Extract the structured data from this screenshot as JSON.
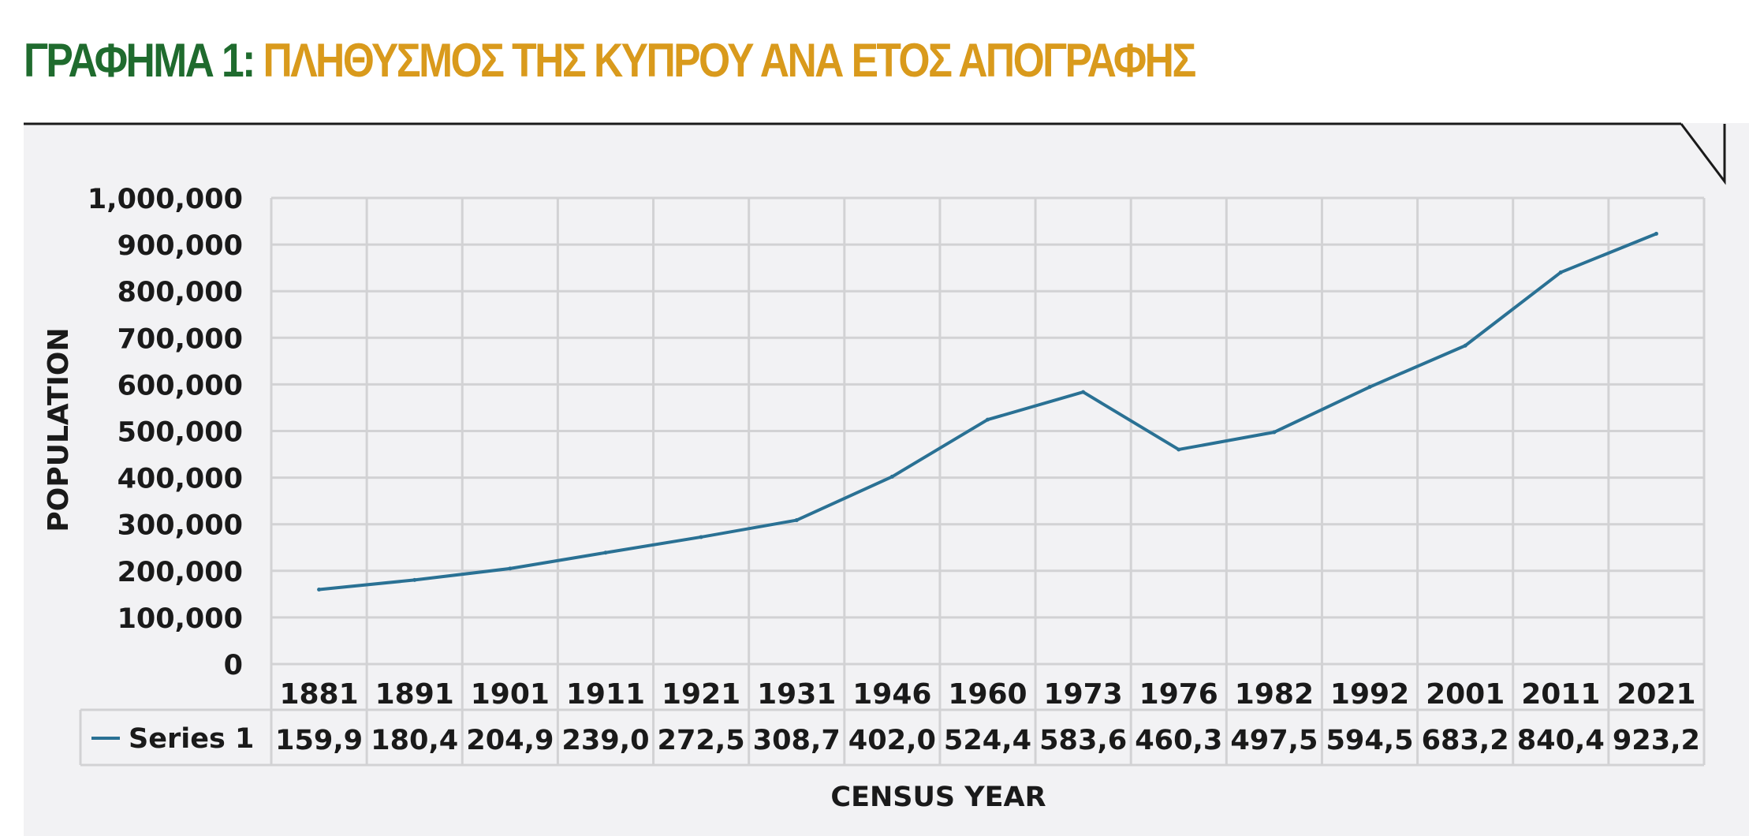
{
  "title": {
    "prefix": "ΓΡΑΦΗΜΑ 1: ",
    "main": "ΠΛΗΘΥΣΜΟΣ ΤΗΣ ΚΥΠΡΟΥ ΑΝΑ ΕΤΟΣ ΑΠΟΓΡΑΦΗΣ"
  },
  "colors": {
    "title_prefix": "#1f6b2e",
    "title_main": "#d99a1c",
    "series": "#2a7194",
    "panel": "#f2f2f4",
    "grid": "#d2d2d4"
  },
  "chart_data": {
    "type": "line",
    "categories": [
      "1881",
      "1891",
      "1901",
      "1911",
      "1921",
      "1931",
      "1946",
      "1960",
      "1973",
      "1976",
      "1982",
      "1992",
      "2001",
      "2011",
      "2021"
    ],
    "series": [
      {
        "name": "Series 1",
        "values": [
          159900,
          180400,
          204900,
          239000,
          272500,
          308700,
          402000,
          524400,
          583600,
          460300,
          497500,
          594500,
          683200,
          840400,
          923200
        ],
        "table_labels": [
          "159,9",
          "180,4",
          "204,9",
          "239,0",
          "272,5",
          "308,7",
          "402,0",
          "524,4",
          "583,6",
          "460,3",
          "497,5",
          "594,5",
          "683,2",
          "840,4",
          "923,2"
        ]
      }
    ],
    "ylim": [
      0,
      1000000
    ],
    "yticks": [
      "0",
      "100,000",
      "200,000",
      "300,000",
      "400,000",
      "500,000",
      "600,000",
      "700,000",
      "800,000",
      "900,000",
      "1,000,000"
    ],
    "xlabel": "CENSUS YEAR",
    "ylabel": "POPULATION",
    "grid": true,
    "data_table": true
  }
}
